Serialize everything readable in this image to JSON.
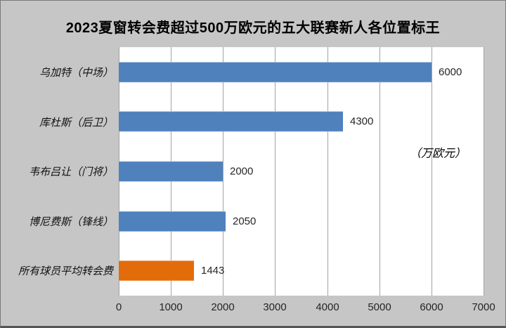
{
  "colors": {
    "background": "#C6C6C6",
    "plot_background": "#FFFFFF",
    "gridline": "#A3A3A3",
    "bar_blue": "#4F81BD",
    "bar_orange": "#E36C0A",
    "title_text": "#000000",
    "tick_text": "#262626",
    "border": "#7A7A7A"
  },
  "chart_data": {
    "type": "bar",
    "orientation": "horizontal",
    "title": "2023夏窗转会费超过500万欧元的五大联赛新人各位置标王",
    "unit_label": "（万欧元）",
    "categories": [
      "乌加特（中场）",
      "库杜斯（后卫）",
      "韦布吕让（门将）",
      "博尼费斯（锋线）",
      "所有球员平均转会费"
    ],
    "values": [
      6000,
      4300,
      2000,
      2050,
      1443
    ],
    "value_labels": [
      "6000",
      "4300",
      "2000",
      "2050",
      "1443"
    ],
    "bar_colors": [
      "#4F81BD",
      "#4F81BD",
      "#4F81BD",
      "#4F81BD",
      "#E36C0A"
    ],
    "xlim": [
      0,
      7000
    ],
    "x_ticks": [
      0,
      1000,
      2000,
      3000,
      4000,
      5000,
      6000,
      7000
    ],
    "x_tick_labels": [
      "0",
      "1000",
      "2000",
      "3000",
      "4000",
      "5000",
      "6000",
      "7000"
    ],
    "grid": "vertical gridlines every 1000, plot area white on gray chart background",
    "legend": "none"
  }
}
